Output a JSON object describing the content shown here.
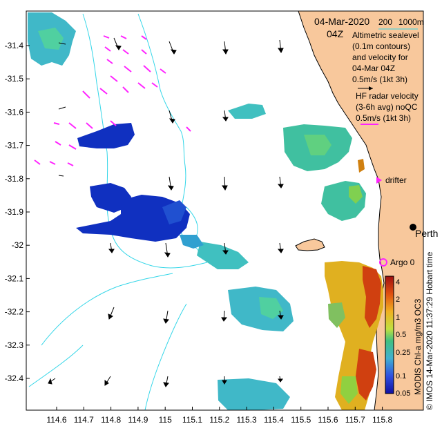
{
  "header": {
    "date": "04-Mar-2020",
    "time": "04Z",
    "bathymetry_labels": [
      "200",
      "1000m"
    ]
  },
  "legend": {
    "altimetric_lines": [
      "Altimetric sealevel",
      "(0.1m contours)",
      "and velocity for",
      "04-Mar 04Z",
      "0.5m/s (1kt 3h)"
    ],
    "hf_lines": [
      "HF radar velocity",
      "(3-6h avg) noQC",
      "0.5m/s (1kt 3h)"
    ],
    "drifter_label": "drifter",
    "argo_label": "Argo 0",
    "city_label": "Perth"
  },
  "colorbar": {
    "ticks": [
      "4",
      "2",
      "1",
      "0.5",
      "0.25",
      "0.1",
      "0.05"
    ],
    "caption": "MODIS Chl-a mg/m3 OC3"
  },
  "credit": "© IMOS 14-Mar-2020 11:37:29 Hobart time",
  "axes": {
    "x_ticks": [
      "114.6",
      "114.7",
      "114.8",
      "114.9",
      "115",
      "115.1",
      "115.2",
      "115.3",
      "115.4",
      "115.5",
      "115.6",
      "115.7",
      "115.8"
    ],
    "y_ticks": [
      "-31.4",
      "-31.5",
      "-31.6",
      "-31.7",
      "-31.8",
      "-31.9",
      "-32",
      "-32.1",
      "-32.2",
      "-32.3",
      "-32.4"
    ]
  },
  "colors": {
    "land": "#f8c89c",
    "ocean": "#ffffff",
    "contour": "#33d6e8",
    "hf_arrow": "#ff22ff",
    "alt_arrow": "#000000",
    "chl_low": "#1030c0",
    "chl_mid": "#40c0c0",
    "chl_high": "#d04010"
  }
}
